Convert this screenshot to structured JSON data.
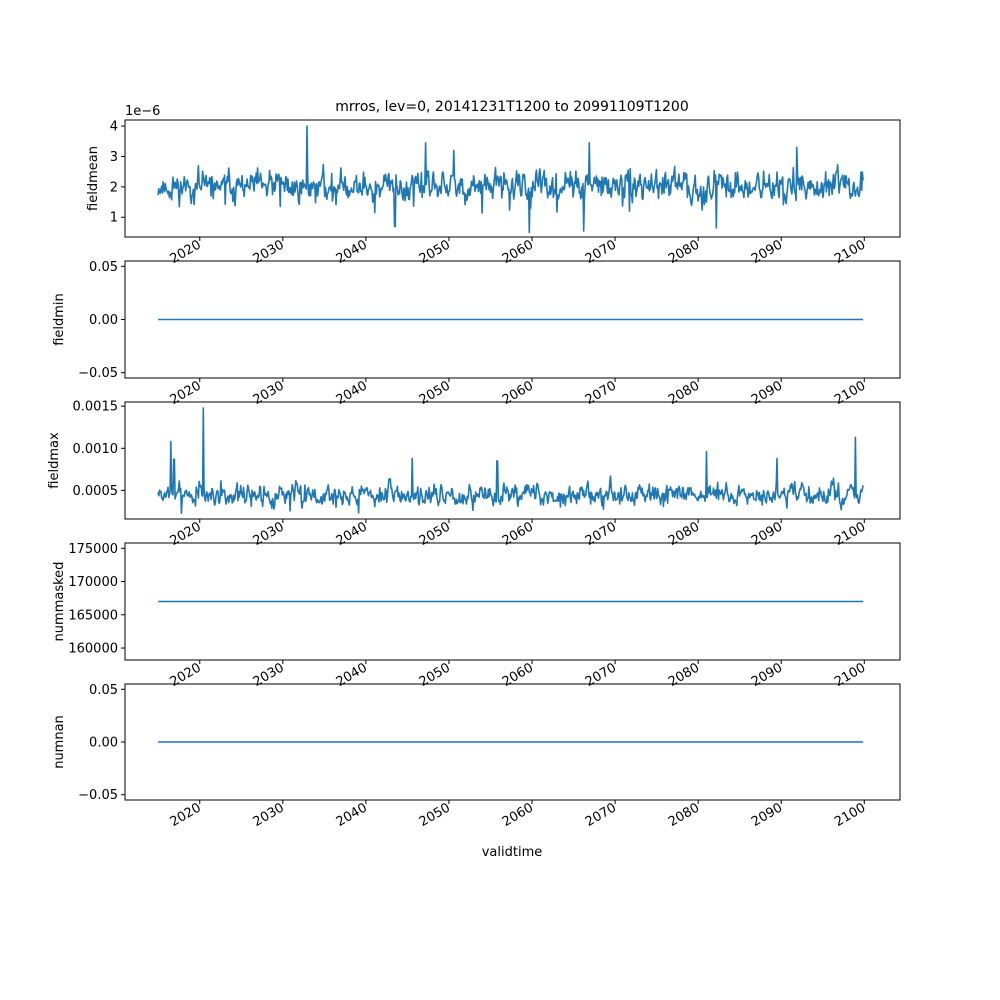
{
  "figure": {
    "title": "mrros, lev=0, 20141231T1200 to 20991109T1200",
    "x_label": "validtime",
    "x_ticks": [
      "2020",
      "2030",
      "2040",
      "2050",
      "2060",
      "2070",
      "2080",
      "2090",
      "2100"
    ],
    "line_color": "#1f77b4"
  },
  "chart_data": [
    {
      "type": "line",
      "ylabel": "fieldmean",
      "y_offset_text": "1e−6",
      "ylim": [
        0.35,
        4.2
      ],
      "y_ticks": [
        1,
        2,
        3,
        4
      ],
      "y_tick_labels": [
        "1",
        "2",
        "3",
        "4"
      ],
      "xlim": [
        2011,
        2104.3
      ],
      "x_range": [
        2014.99,
        2099.86
      ],
      "x_ticks": [
        2020,
        2030,
        2040,
        2050,
        2060,
        2070,
        2080,
        2090,
        2100
      ],
      "pattern": "noisy",
      "mean": 2.0,
      "spread": 0.35,
      "spikes": [
        [
          2032.9,
          4.0
        ],
        [
          2047.2,
          3.45
        ],
        [
          2059.7,
          0.5
        ],
        [
          2066.2,
          0.55
        ],
        [
          2066.9,
          3.45
        ],
        [
          2082.2,
          0.65
        ],
        [
          2091.9,
          3.3
        ],
        [
          2043.5,
          0.7
        ],
        [
          2050.6,
          3.2
        ]
      ],
      "seed": 11
    },
    {
      "type": "line",
      "ylabel": "fieldmin",
      "ylim": [
        -0.055,
        0.055
      ],
      "y_ticks": [
        -0.05,
        0.0,
        0.05
      ],
      "y_tick_labels": [
        "−0.05",
        "0.00",
        "0.05"
      ],
      "xlim": [
        2011,
        2104.3
      ],
      "x_range": [
        2014.99,
        2099.86
      ],
      "x_ticks": [
        2020,
        2030,
        2040,
        2050,
        2060,
        2070,
        2080,
        2090,
        2100
      ],
      "pattern": "constant",
      "value": 0.0
    },
    {
      "type": "line",
      "ylabel": "fieldmax",
      "ylim": [
        0.00016,
        0.00155
      ],
      "y_ticks": [
        0.0005,
        0.001,
        0.0015
      ],
      "y_tick_labels": [
        "0.0005",
        "0.0010",
        "0.0015"
      ],
      "xlim": [
        2011,
        2104.3
      ],
      "x_range": [
        2014.99,
        2099.86
      ],
      "x_ticks": [
        2020,
        2030,
        2040,
        2050,
        2060,
        2070,
        2080,
        2090,
        2100
      ],
      "pattern": "noisy",
      "mean": 0.00045,
      "spread": 9e-05,
      "spikes": [
        [
          2020.4,
          0.00148
        ],
        [
          2016.5,
          0.00108
        ],
        [
          2098.9,
          0.00113
        ],
        [
          2016.9,
          0.00087
        ],
        [
          2081.0,
          0.00096
        ],
        [
          2045.6,
          0.00088
        ],
        [
          2055.8,
          0.00085
        ],
        [
          2089.5,
          0.00088
        ]
      ],
      "seed": 7
    },
    {
      "type": "line",
      "ylabel": "nummasked",
      "ylim": [
        158200,
        175800
      ],
      "y_ticks": [
        160000,
        165000,
        170000,
        175000
      ],
      "y_tick_labels": [
        "160000",
        "165000",
        "170000",
        "175000"
      ],
      "xlim": [
        2011,
        2104.3
      ],
      "x_range": [
        2014.99,
        2099.86
      ],
      "x_ticks": [
        2020,
        2030,
        2040,
        2050,
        2060,
        2070,
        2080,
        2090,
        2100
      ],
      "pattern": "constant",
      "value": 167000
    },
    {
      "type": "line",
      "ylabel": "numnan",
      "ylim": [
        -0.055,
        0.055
      ],
      "y_ticks": [
        -0.05,
        0.0,
        0.05
      ],
      "y_tick_labels": [
        "−0.05",
        "0.00",
        "0.05"
      ],
      "xlim": [
        2011,
        2104.3
      ],
      "x_range": [
        2014.99,
        2099.86
      ],
      "x_ticks": [
        2020,
        2030,
        2040,
        2050,
        2060,
        2070,
        2080,
        2090,
        2100
      ],
      "pattern": "constant",
      "value": 0.0
    }
  ]
}
